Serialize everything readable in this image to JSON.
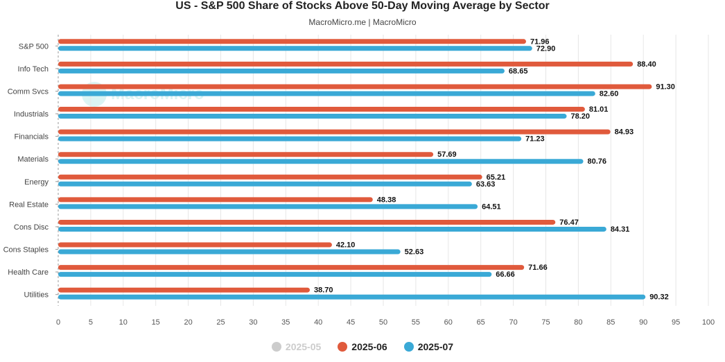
{
  "header": {
    "title": "US - S&P 500 Share of Stocks Above 50-Day Moving Average by Sector",
    "subtitle": "MacroMicro.me | MacroMicro"
  },
  "watermark": {
    "text": "MacroMicro"
  },
  "legend": [
    {
      "label": "2025-05",
      "color": "#cccccc",
      "inactive": true
    },
    {
      "label": "2025-06",
      "color": "#e05a3c"
    },
    {
      "label": "2025-07",
      "color": "#3aa9d6"
    }
  ],
  "chart_data": {
    "type": "bar",
    "orientation": "horizontal",
    "title": "US - S&P 500 Share of Stocks Above 50-Day Moving Average by Sector",
    "subtitle": "MacroMicro.me | MacroMicro",
    "categories": [
      "S&P 500",
      "Info Tech",
      "Comm Svcs",
      "Industrials",
      "Financials",
      "Materials",
      "Energy",
      "Real Estate",
      "Cons Disc",
      "Cons Staples",
      "Health Care",
      "Utilities"
    ],
    "series": [
      {
        "name": "2025-06",
        "color": "#e05a3c",
        "values": [
          71.96,
          88.4,
          91.3,
          81.01,
          84.93,
          57.69,
          65.21,
          48.38,
          76.47,
          42.1,
          71.66,
          38.7
        ]
      },
      {
        "name": "2025-07",
        "color": "#3aa9d6",
        "values": [
          72.9,
          68.65,
          82.6,
          78.2,
          71.23,
          80.76,
          63.63,
          64.51,
          84.31,
          52.63,
          66.66,
          90.32
        ]
      }
    ],
    "xlim": [
      0,
      100
    ],
    "xticks": [
      0,
      5,
      10,
      15,
      20,
      25,
      30,
      35,
      40,
      45,
      50,
      55,
      60,
      65,
      70,
      75,
      80,
      85,
      90,
      95,
      100
    ],
    "grid": true,
    "legend_position": "bottom"
  }
}
